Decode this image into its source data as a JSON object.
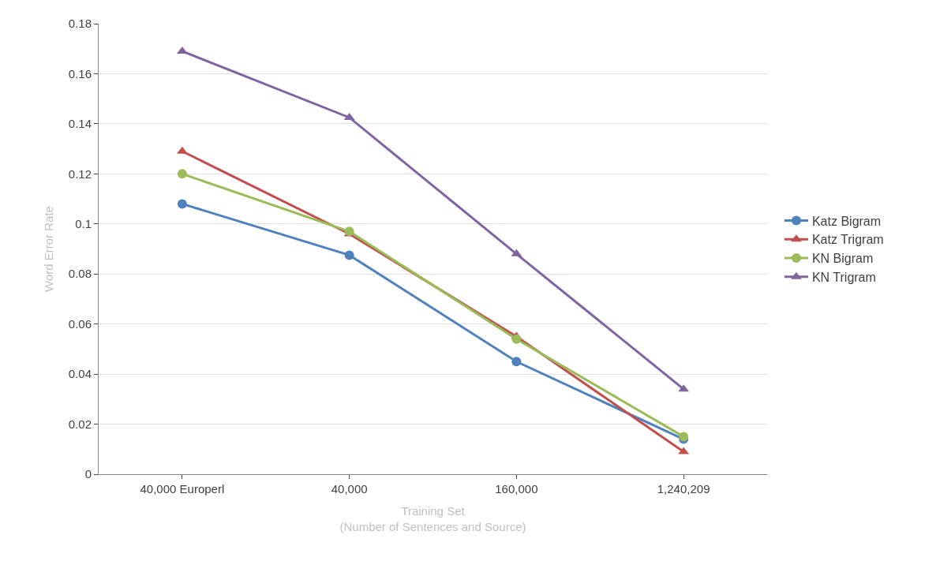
{
  "chart_data": {
    "type": "line",
    "categories": [
      "40,000 Europerl",
      "40,000",
      "160,000",
      "1,240,209"
    ],
    "xlabel": "Training Set\n(Number of Sentences and Source)",
    "ylabel": "Word Error Rate",
    "ylim": [
      0,
      0.18
    ],
    "yticks": [
      0,
      0.02,
      0.04,
      0.06,
      0.08,
      0.1,
      0.12,
      0.14,
      0.16,
      0.18
    ],
    "grid": "y",
    "legend": "right",
    "series": [
      {
        "name": "Katz Bigram",
        "color": "#4f81bd",
        "marker": "circle",
        "values": [
          0.108,
          0.0875,
          0.045,
          0.014
        ]
      },
      {
        "name": "Katz Trigram",
        "color": "#c0504d",
        "marker": "triangle",
        "values": [
          0.129,
          0.096,
          0.055,
          0.009
        ]
      },
      {
        "name": "KN Bigram",
        "color": "#9bbb59",
        "marker": "circle",
        "values": [
          0.12,
          0.097,
          0.054,
          0.015
        ]
      },
      {
        "name": "KN Trigram",
        "color": "#8064a2",
        "marker": "triangle",
        "values": [
          0.169,
          0.1425,
          0.088,
          0.034
        ]
      }
    ]
  }
}
